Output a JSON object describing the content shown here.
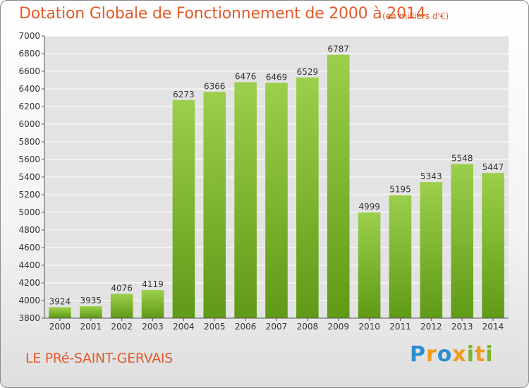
{
  "title": "Dotation Globale de Fonctionnement de 2000 à 2014",
  "subtitle": "(en milliers d'€)",
  "commune": "LE PRé-SAINT-GERVAIS",
  "logo": {
    "text": "Proxiti",
    "letters": [
      {
        "ch": "P",
        "color": "#2a8fd0"
      },
      {
        "ch": "r",
        "color": "#f29a1a"
      },
      {
        "ch": "o",
        "color": "#2a8fd0"
      },
      {
        "ch": "x",
        "color": "#f29a1a"
      },
      {
        "ch": "i",
        "color": "#7ab52a"
      },
      {
        "ch": "t",
        "color": "#f29a1a"
      },
      {
        "ch": "i",
        "color": "#7ab52a"
      }
    ]
  },
  "colors": {
    "title": "#e35a2b",
    "bar_top": "#9ccf4b",
    "bar_bottom": "#5f9a16",
    "grid": "#ffffff",
    "plot_bg": "#e3e3e3"
  },
  "chart_data": {
    "type": "bar",
    "title": "Dotation Globale de Fonctionnement de 2000 à 2014",
    "subtitle": "(en milliers d'€)",
    "categories": [
      "2000",
      "2001",
      "2002",
      "2003",
      "2004",
      "2005",
      "2006",
      "2007",
      "2008",
      "2009",
      "2010",
      "2011",
      "2012",
      "2013",
      "2014"
    ],
    "values": [
      3924,
      3935,
      4076,
      4119,
      6273,
      6366,
      6476,
      6469,
      6529,
      6787,
      4999,
      5195,
      5343,
      5548,
      5447
    ],
    "ylim": [
      3800,
      7000
    ],
    "yticks": [
      3800,
      4000,
      4200,
      4400,
      4600,
      4800,
      5000,
      5200,
      5400,
      5600,
      5800,
      6000,
      6200,
      6400,
      6600,
      6800,
      7000
    ],
    "grid": true,
    "data_labels": true,
    "xlabel": "",
    "ylabel": ""
  }
}
